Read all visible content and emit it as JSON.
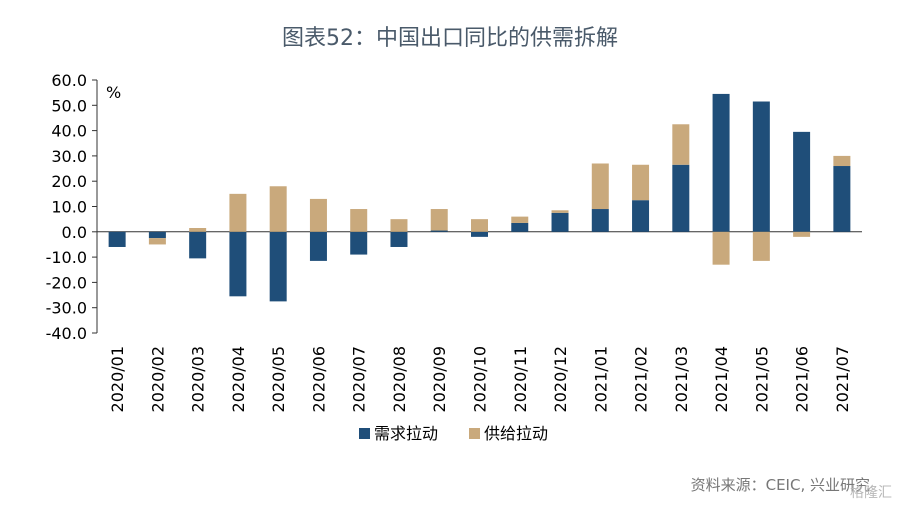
{
  "title": "图表52：中国出口同比的供需拆解",
  "source": "资料来源：CEIC, 兴业研究",
  "watermark": "格隆汇",
  "chart_data": {
    "type": "bar",
    "stacked": true,
    "unit": "%",
    "categories": [
      "2020/01",
      "2020/02",
      "2020/03",
      "2020/04",
      "2020/05",
      "2020/06",
      "2020/07",
      "2020/08",
      "2020/09",
      "2020/10",
      "2020/11",
      "2020/12",
      "2021/01",
      "2021/02",
      "2021/03",
      "2021/04",
      "2021/05",
      "2021/06",
      "2021/07"
    ],
    "series": [
      {
        "name": "需求拉动",
        "color": "#1f4e79",
        "values": [
          -6.0,
          -2.5,
          -10.5,
          -25.5,
          -27.5,
          -11.5,
          -9.0,
          -6.0,
          0.5,
          -2.0,
          3.5,
          7.5,
          9.0,
          12.5,
          26.5,
          54.5,
          51.5,
          39.5,
          26.0
        ]
      },
      {
        "name": "供给拉动",
        "color": "#c9a97c",
        "values": [
          0.0,
          -2.5,
          1.5,
          15.0,
          18.0,
          13.0,
          9.0,
          5.0,
          8.5,
          5.0,
          2.5,
          1.0,
          18.0,
          14.0,
          16.0,
          -13.0,
          -11.5,
          -2.0,
          4.0
        ]
      }
    ],
    "ylim": [
      -40,
      60
    ],
    "yticks": [
      "60.0",
      "50.0",
      "40.0",
      "30.0",
      "20.0",
      "10.0",
      "0.0",
      "-10.0",
      "-20.0",
      "-30.0",
      "-40.0"
    ],
    "ytick_values": [
      60,
      50,
      40,
      30,
      20,
      10,
      0,
      -10,
      -20,
      -30,
      -40
    ],
    "legend_position": "bottom-center"
  }
}
